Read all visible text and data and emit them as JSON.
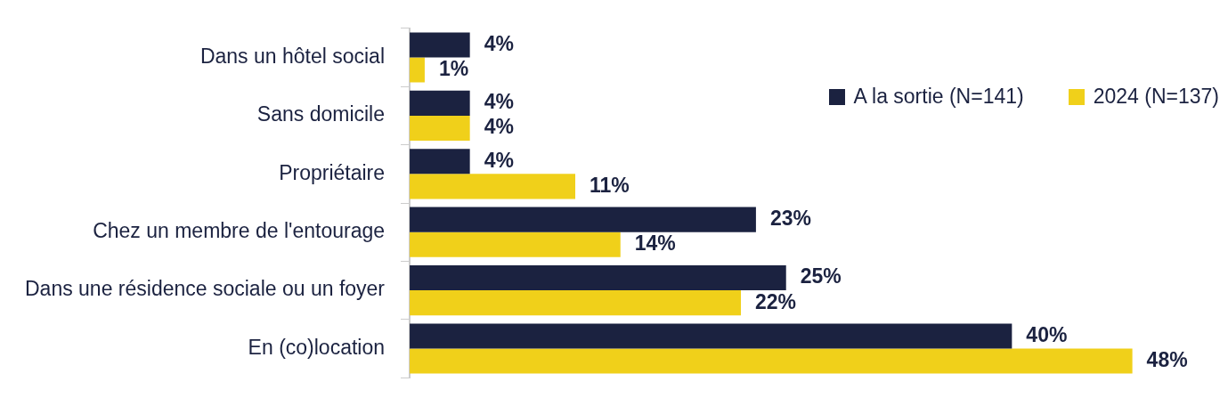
{
  "chart_data": {
    "type": "bar",
    "orientation": "horizontal",
    "categories": [
      "Dans un hôtel social",
      "Sans domicile",
      "Propriétaire",
      "Chez un membre de l'entourage",
      "Dans une résidence sociale ou un foyer",
      "En (co)location"
    ],
    "series": [
      {
        "name": "A la sortie (N=141)",
        "color": "#1b2240",
        "values": [
          4,
          4,
          4,
          23,
          25,
          40
        ],
        "value_labels": [
          "4%",
          "4%",
          "4%",
          "23%",
          "25%",
          "40%"
        ]
      },
      {
        "name": "2024 (N=137)",
        "color": "#f0d01a",
        "values": [
          1,
          4,
          11,
          14,
          22,
          48
        ],
        "value_labels": [
          "1%",
          "4%",
          "11%",
          "14%",
          "22%",
          "48%"
        ]
      }
    ],
    "legend": "top right",
    "tick_labels": "y",
    "grid": false
  }
}
